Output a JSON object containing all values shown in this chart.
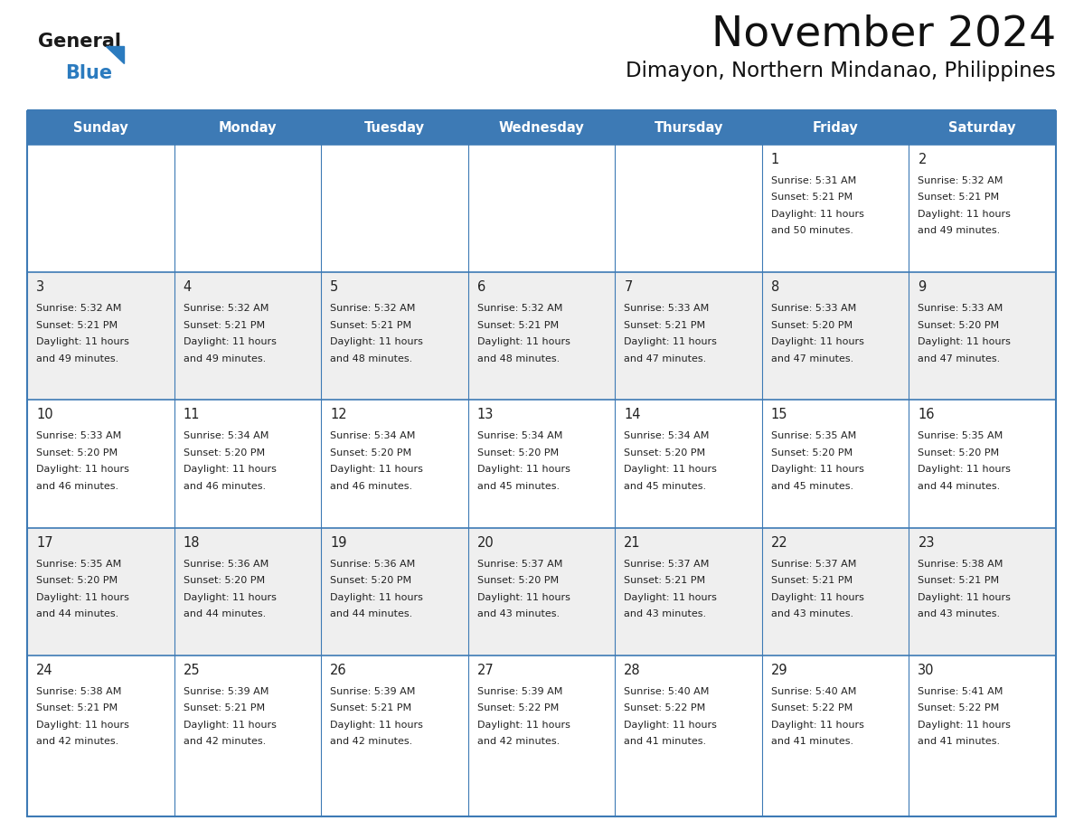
{
  "title": "November 2024",
  "subtitle": "Dimayon, Northern Mindanao, Philippines",
  "header_bg_color": "#3d7ab5",
  "header_text_color": "#FFFFFF",
  "day_names": [
    "Sunday",
    "Monday",
    "Tuesday",
    "Wednesday",
    "Thursday",
    "Friday",
    "Saturday"
  ],
  "bg_color": "#FFFFFF",
  "alt_row_color": "#efefef",
  "cell_text_color": "#222222",
  "border_color": "#3d7ab5",
  "title_color": "#111111",
  "subtitle_color": "#111111",
  "logo_general_color": "#1A1A1A",
  "logo_blue_color": "#2b7bbf",
  "days": [
    {
      "date": 1,
      "col": 5,
      "row": 0,
      "sunrise": "5:31 AM",
      "sunset": "5:21 PM",
      "daylight_hours": 11,
      "daylight_minutes": 50
    },
    {
      "date": 2,
      "col": 6,
      "row": 0,
      "sunrise": "5:32 AM",
      "sunset": "5:21 PM",
      "daylight_hours": 11,
      "daylight_minutes": 49
    },
    {
      "date": 3,
      "col": 0,
      "row": 1,
      "sunrise": "5:32 AM",
      "sunset": "5:21 PM",
      "daylight_hours": 11,
      "daylight_minutes": 49
    },
    {
      "date": 4,
      "col": 1,
      "row": 1,
      "sunrise": "5:32 AM",
      "sunset": "5:21 PM",
      "daylight_hours": 11,
      "daylight_minutes": 49
    },
    {
      "date": 5,
      "col": 2,
      "row": 1,
      "sunrise": "5:32 AM",
      "sunset": "5:21 PM",
      "daylight_hours": 11,
      "daylight_minutes": 48
    },
    {
      "date": 6,
      "col": 3,
      "row": 1,
      "sunrise": "5:32 AM",
      "sunset": "5:21 PM",
      "daylight_hours": 11,
      "daylight_minutes": 48
    },
    {
      "date": 7,
      "col": 4,
      "row": 1,
      "sunrise": "5:33 AM",
      "sunset": "5:21 PM",
      "daylight_hours": 11,
      "daylight_minutes": 47
    },
    {
      "date": 8,
      "col": 5,
      "row": 1,
      "sunrise": "5:33 AM",
      "sunset": "5:20 PM",
      "daylight_hours": 11,
      "daylight_minutes": 47
    },
    {
      "date": 9,
      "col": 6,
      "row": 1,
      "sunrise": "5:33 AM",
      "sunset": "5:20 PM",
      "daylight_hours": 11,
      "daylight_minutes": 47
    },
    {
      "date": 10,
      "col": 0,
      "row": 2,
      "sunrise": "5:33 AM",
      "sunset": "5:20 PM",
      "daylight_hours": 11,
      "daylight_minutes": 46
    },
    {
      "date": 11,
      "col": 1,
      "row": 2,
      "sunrise": "5:34 AM",
      "sunset": "5:20 PM",
      "daylight_hours": 11,
      "daylight_minutes": 46
    },
    {
      "date": 12,
      "col": 2,
      "row": 2,
      "sunrise": "5:34 AM",
      "sunset": "5:20 PM",
      "daylight_hours": 11,
      "daylight_minutes": 46
    },
    {
      "date": 13,
      "col": 3,
      "row": 2,
      "sunrise": "5:34 AM",
      "sunset": "5:20 PM",
      "daylight_hours": 11,
      "daylight_minutes": 45
    },
    {
      "date": 14,
      "col": 4,
      "row": 2,
      "sunrise": "5:34 AM",
      "sunset": "5:20 PM",
      "daylight_hours": 11,
      "daylight_minutes": 45
    },
    {
      "date": 15,
      "col": 5,
      "row": 2,
      "sunrise": "5:35 AM",
      "sunset": "5:20 PM",
      "daylight_hours": 11,
      "daylight_minutes": 45
    },
    {
      "date": 16,
      "col": 6,
      "row": 2,
      "sunrise": "5:35 AM",
      "sunset": "5:20 PM",
      "daylight_hours": 11,
      "daylight_minutes": 44
    },
    {
      "date": 17,
      "col": 0,
      "row": 3,
      "sunrise": "5:35 AM",
      "sunset": "5:20 PM",
      "daylight_hours": 11,
      "daylight_minutes": 44
    },
    {
      "date": 18,
      "col": 1,
      "row": 3,
      "sunrise": "5:36 AM",
      "sunset": "5:20 PM",
      "daylight_hours": 11,
      "daylight_minutes": 44
    },
    {
      "date": 19,
      "col": 2,
      "row": 3,
      "sunrise": "5:36 AM",
      "sunset": "5:20 PM",
      "daylight_hours": 11,
      "daylight_minutes": 44
    },
    {
      "date": 20,
      "col": 3,
      "row": 3,
      "sunrise": "5:37 AM",
      "sunset": "5:20 PM",
      "daylight_hours": 11,
      "daylight_minutes": 43
    },
    {
      "date": 21,
      "col": 4,
      "row": 3,
      "sunrise": "5:37 AM",
      "sunset": "5:21 PM",
      "daylight_hours": 11,
      "daylight_minutes": 43
    },
    {
      "date": 22,
      "col": 5,
      "row": 3,
      "sunrise": "5:37 AM",
      "sunset": "5:21 PM",
      "daylight_hours": 11,
      "daylight_minutes": 43
    },
    {
      "date": 23,
      "col": 6,
      "row": 3,
      "sunrise": "5:38 AM",
      "sunset": "5:21 PM",
      "daylight_hours": 11,
      "daylight_minutes": 43
    },
    {
      "date": 24,
      "col": 0,
      "row": 4,
      "sunrise": "5:38 AM",
      "sunset": "5:21 PM",
      "daylight_hours": 11,
      "daylight_minutes": 42
    },
    {
      "date": 25,
      "col": 1,
      "row": 4,
      "sunrise": "5:39 AM",
      "sunset": "5:21 PM",
      "daylight_hours": 11,
      "daylight_minutes": 42
    },
    {
      "date": 26,
      "col": 2,
      "row": 4,
      "sunrise": "5:39 AM",
      "sunset": "5:21 PM",
      "daylight_hours": 11,
      "daylight_minutes": 42
    },
    {
      "date": 27,
      "col": 3,
      "row": 4,
      "sunrise": "5:39 AM",
      "sunset": "5:22 PM",
      "daylight_hours": 11,
      "daylight_minutes": 42
    },
    {
      "date": 28,
      "col": 4,
      "row": 4,
      "sunrise": "5:40 AM",
      "sunset": "5:22 PM",
      "daylight_hours": 11,
      "daylight_minutes": 41
    },
    {
      "date": 29,
      "col": 5,
      "row": 4,
      "sunrise": "5:40 AM",
      "sunset": "5:22 PM",
      "daylight_hours": 11,
      "daylight_minutes": 41
    },
    {
      "date": 30,
      "col": 6,
      "row": 4,
      "sunrise": "5:41 AM",
      "sunset": "5:22 PM",
      "daylight_hours": 11,
      "daylight_minutes": 41
    }
  ],
  "num_rows": 5,
  "num_cols": 7
}
